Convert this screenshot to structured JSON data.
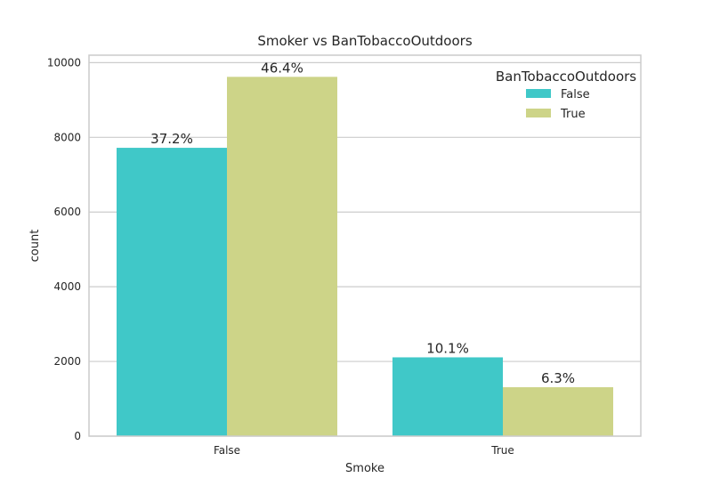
{
  "chart_data": {
    "type": "bar",
    "title": "Smoker vs BanTobaccoOutdoors",
    "xlabel": "Smoke",
    "ylabel": "count",
    "categories": [
      "False",
      "True"
    ],
    "series": [
      {
        "name": "False",
        "values": [
          7720,
          2110
        ],
        "labels": [
          "37.2%",
          "10.1%"
        ],
        "color": "#40C8C8"
      },
      {
        "name": "True",
        "values": [
          9620,
          1310
        ],
        "labels": [
          "46.4%",
          "6.3%"
        ],
        "color": "#CDD488"
      }
    ],
    "ylim": [
      0,
      10000
    ],
    "yticks": [
      0,
      2000,
      4000,
      6000,
      8000,
      10000
    ],
    "grid": "horizontal",
    "legend": {
      "title": "BanTobaccoOutdoors",
      "placement": "top-right"
    }
  }
}
